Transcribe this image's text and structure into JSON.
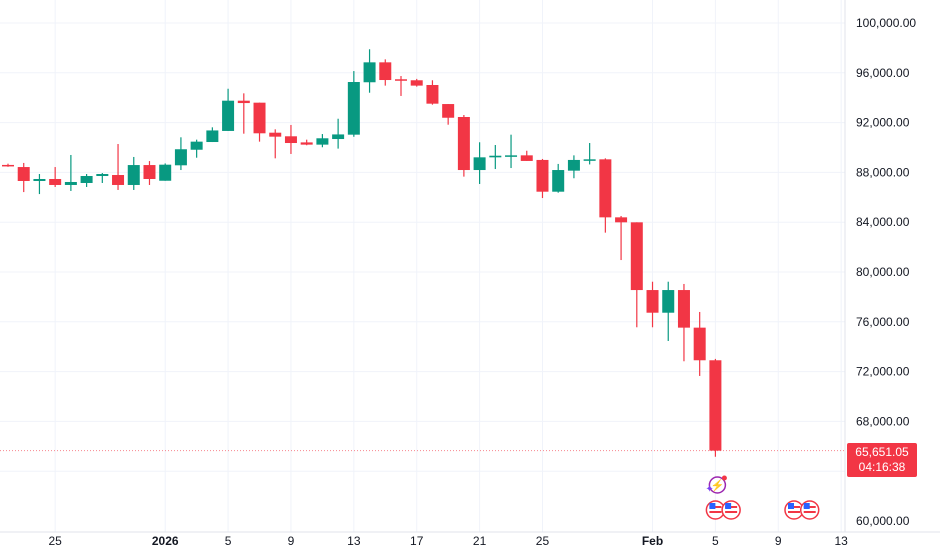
{
  "chart_data": {
    "type": "candlestick",
    "title": "",
    "xlabel": "",
    "ylabel": "",
    "ylim": [
      60000,
      100000
    ],
    "grid": true,
    "colors": {
      "up": "#089981",
      "down": "#f23645",
      "grid": "#f0f3fa",
      "text": "#131722"
    },
    "y_ticks": [
      "100,000.00",
      "96,000.00",
      "92,000.00",
      "88,000.00",
      "84,000.00",
      "80,000.00",
      "76,000.00",
      "72,000.00",
      "68,000.00",
      "60,000.00"
    ],
    "y_tick_values": [
      100000,
      96000,
      92000,
      88000,
      84000,
      80000,
      76000,
      72000,
      68000,
      60000
    ],
    "x_ticks": [
      {
        "label": "25",
        "day": 3
      },
      {
        "label": "2026",
        "day": 10
      },
      {
        "label": "5",
        "day": 14
      },
      {
        "label": "9",
        "day": 18
      },
      {
        "label": "13",
        "day": 22
      },
      {
        "label": "17",
        "day": 26
      },
      {
        "label": "21",
        "day": 30
      },
      {
        "label": "25",
        "day": 34
      },
      {
        "label": "Feb",
        "day": 41
      },
      {
        "label": "5",
        "day": 45
      },
      {
        "label": "9",
        "day": 49
      },
      {
        "label": "13",
        "day": 53
      }
    ],
    "candles_columns": [
      "date",
      "open",
      "high",
      "low",
      "close"
    ],
    "candles": [
      [
        "Dec 22",
        88600,
        88700,
        88450,
        88500
      ],
      [
        "Dec 23",
        88430,
        88760,
        86420,
        87310
      ],
      [
        "Dec 24",
        87310,
        87870,
        86260,
        87470
      ],
      [
        "Dec 25",
        87470,
        88430,
        86830,
        86990
      ],
      [
        "Dec 26",
        86990,
        89400,
        86510,
        87230
      ],
      [
        "Dec 27",
        87150,
        87870,
        86830,
        87710
      ],
      [
        "Dec 28",
        87710,
        87950,
        87150,
        87870
      ],
      [
        "Dec 29",
        87790,
        90280,
        86590,
        86990
      ],
      [
        "Dec 30",
        86990,
        89240,
        86590,
        88590
      ],
      [
        "Dec 31",
        88590,
        88910,
        86990,
        87470
      ],
      [
        "Jan 1",
        87330,
        88720,
        87330,
        88620
      ],
      [
        "Jan 2",
        88570,
        90820,
        88190,
        89860
      ],
      [
        "Jan 3",
        89820,
        90630,
        89180,
        90470
      ],
      [
        "Jan 4",
        90440,
        91620,
        90440,
        91370
      ],
      [
        "Jan 5",
        91330,
        94720,
        91330,
        93760
      ],
      [
        "Jan 6",
        93760,
        94350,
        91110,
        93570
      ],
      [
        "Jan 7",
        93600,
        93600,
        90470,
        91140
      ],
      [
        "Jan 8",
        91190,
        91460,
        89130,
        90870
      ],
      [
        "Jan 9",
        90900,
        91810,
        89480,
        90360
      ],
      [
        "Jan 10",
        90410,
        90630,
        90180,
        90230
      ],
      [
        "Jan 11",
        90230,
        91080,
        90020,
        90740
      ],
      [
        "Jan 12",
        90680,
        92310,
        89910,
        91050
      ],
      [
        "Jan 13",
        91030,
        96140,
        90860,
        95260
      ],
      [
        "Jan 14",
        95240,
        97890,
        94400,
        96840
      ],
      [
        "Jan 15",
        96840,
        97080,
        94970,
        95420
      ],
      [
        "Jan 16",
        95480,
        95740,
        94140,
        95370
      ],
      [
        "Jan 17",
        95400,
        95510,
        94890,
        94970
      ],
      [
        "Jan 18",
        95020,
        95400,
        93440,
        93520
      ],
      [
        "Jan 19",
        93490,
        93490,
        91830,
        92390
      ],
      [
        "Jan 20",
        92450,
        92610,
        87660,
        88190
      ],
      [
        "Jan 21",
        88190,
        90420,
        87070,
        89210
      ],
      [
        "Jan 22",
        89210,
        90200,
        88270,
        89340
      ],
      [
        "Jan 23",
        89290,
        91030,
        88350,
        89370
      ],
      [
        "Jan 24",
        89370,
        89740,
        88920,
        88920
      ],
      [
        "Jan 25",
        89000,
        89080,
        85940,
        86450
      ],
      [
        "Jan 26",
        86450,
        88680,
        86370,
        88190
      ],
      [
        "Jan 27",
        88140,
        89370,
        87530,
        89000
      ],
      [
        "Jan 28",
        88990,
        90360,
        88640,
        89050
      ],
      [
        "Jan 29",
        89050,
        89130,
        83160,
        84390
      ],
      [
        "Jan 30",
        84390,
        84500,
        80960,
        83990
      ],
      [
        "Jan 31",
        83990,
        83990,
        75560,
        78550
      ],
      [
        "Feb 1",
        78550,
        79220,
        75560,
        76730
      ],
      [
        "Feb 2",
        76730,
        79220,
        74460,
        78550
      ],
      [
        "Feb 3",
        78550,
        79040,
        72830,
        75530
      ],
      [
        "Feb 4",
        75530,
        76790,
        71650,
        72910
      ],
      [
        "Feb 5",
        72910,
        73020,
        65160,
        65651.05
      ]
    ],
    "last_price": {
      "value": 65651.05,
      "label": "65,651.05",
      "countdown": "04:16:38"
    },
    "events": [
      {
        "type": "lightning-event",
        "day": 45
      },
      {
        "type": "us-flag-event",
        "day": 45
      },
      {
        "type": "us-flag-event",
        "day": 46
      },
      {
        "type": "us-flag-event",
        "day": 50
      },
      {
        "type": "us-flag-event",
        "day": 51
      }
    ]
  }
}
